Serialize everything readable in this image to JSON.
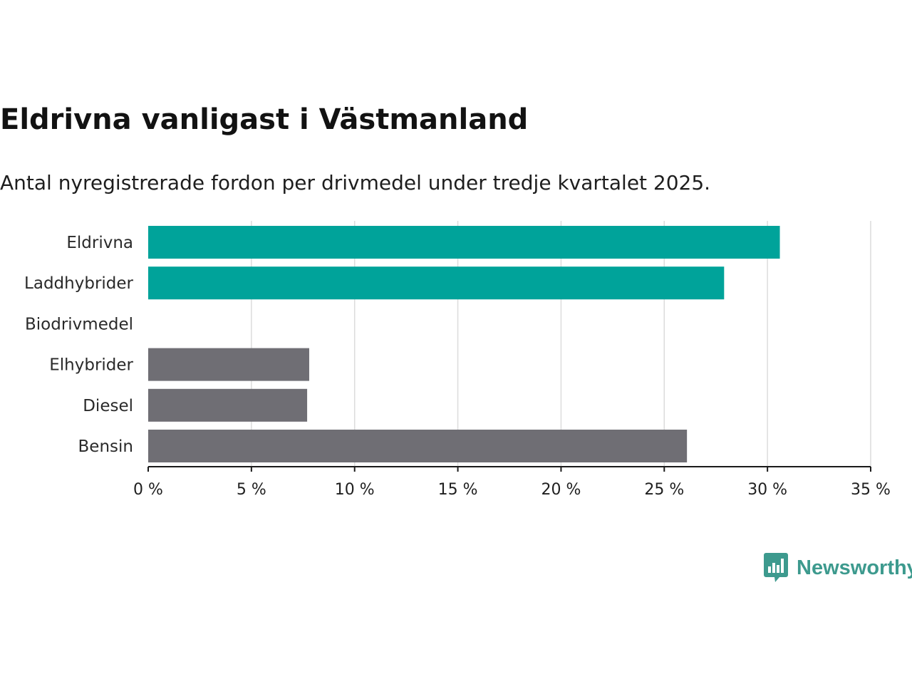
{
  "title": "Eldrivna vanligast i Västmanland",
  "subtitle": "Antal nyregistrerade fordon per drivmedel under tredje kvartalet 2025.",
  "colors": {
    "highlight": "#00a39a",
    "neutral": "#6f6e74",
    "grid": "#dcdcdc",
    "axis": "#1a1a1a",
    "brand": "#3d9a8e"
  },
  "chart_data": {
    "type": "bar",
    "orientation": "horizontal",
    "title": "Eldrivna vanligast i Västmanland",
    "subtitle": "Antal nyregistrerade fordon per drivmedel under tredje kvartalet 2025.",
    "xlabel": "",
    "ylabel": "",
    "unit": "%",
    "xlim": [
      0,
      35
    ],
    "xticks": [
      0,
      5,
      10,
      15,
      20,
      25,
      30,
      35
    ],
    "xtick_labels": [
      "0 %",
      "5 %",
      "10 %",
      "15 %",
      "20 %",
      "25 %",
      "30 %",
      "35 %"
    ],
    "grid": "vertical",
    "categories": [
      "Eldrivna",
      "Laddhybrider",
      "Biodrivmedel",
      "Elhybrider",
      "Diesel",
      "Bensin"
    ],
    "values": [
      30.6,
      27.9,
      0.0,
      7.8,
      7.7,
      26.1
    ],
    "bar_color_group": [
      "highlight",
      "highlight",
      "neutral",
      "neutral",
      "neutral",
      "neutral"
    ]
  },
  "logo": {
    "name": "Newsworthy",
    "icon": "bar-chart-speech-bubble-icon"
  }
}
